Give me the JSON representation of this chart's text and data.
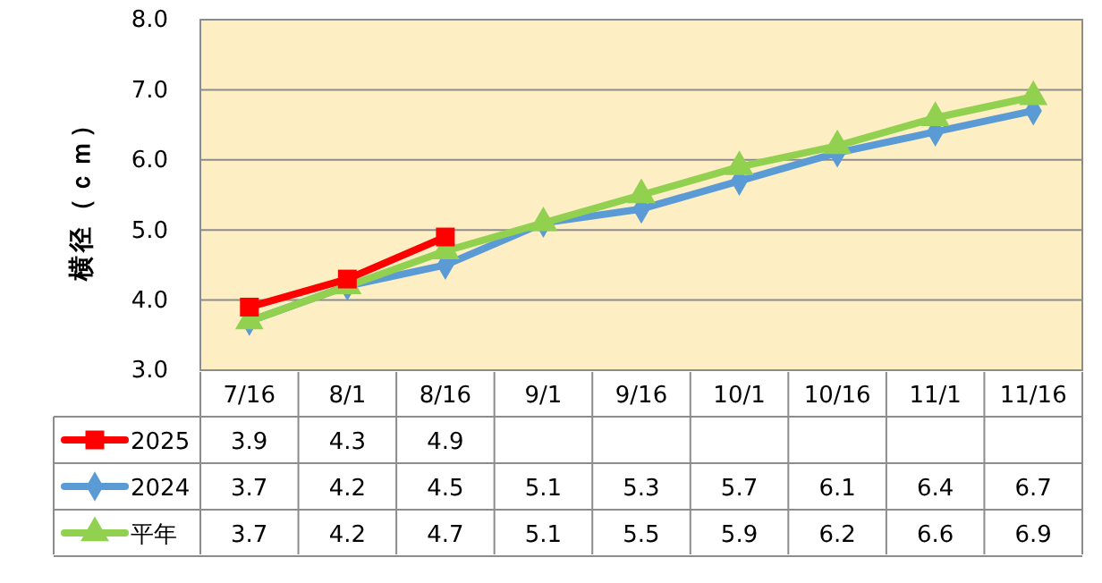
{
  "chart_data": {
    "type": "line",
    "ylabel": "横径（ｃｍ）",
    "categories": [
      "7/16",
      "8/1",
      "8/16",
      "9/1",
      "9/16",
      "10/1",
      "10/16",
      "11/1",
      "11/16"
    ],
    "series": [
      {
        "name": "2025",
        "color": "#ff0000",
        "marker": "square",
        "values": [
          3.9,
          4.3,
          4.9,
          null,
          null,
          null,
          null,
          null,
          null
        ]
      },
      {
        "name": "2024",
        "color": "#5b9bd5",
        "marker": "diamond",
        "values": [
          3.7,
          4.2,
          4.5,
          5.1,
          5.3,
          5.7,
          6.1,
          6.4,
          6.7
        ]
      },
      {
        "name": "平年",
        "color": "#92d050",
        "marker": "triangle",
        "values": [
          3.7,
          4.2,
          4.7,
          5.1,
          5.5,
          5.9,
          6.2,
          6.6,
          6.9
        ]
      }
    ],
    "ylim": [
      3,
      8
    ],
    "yticks": [
      {
        "value": 3,
        "label": "3.0"
      },
      {
        "value": 4,
        "label": "4.0"
      },
      {
        "value": 5,
        "label": "5.0"
      },
      {
        "value": 6,
        "label": "6.0"
      },
      {
        "value": 7,
        "label": "7.0"
      },
      {
        "value": 8,
        "label": "8.0"
      }
    ],
    "grid": "y",
    "legend": "bottom",
    "data_labels": true
  }
}
